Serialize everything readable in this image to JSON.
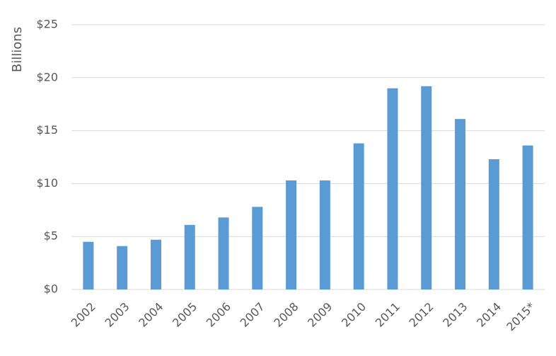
{
  "chart_data": {
    "type": "bar",
    "y_label": "Billions",
    "categories": [
      "2002",
      "2003",
      "2004",
      "2005",
      "2006",
      "2007",
      "2008",
      "2009",
      "2010",
      "2011",
      "2012",
      "2013",
      "2014",
      "2015*"
    ],
    "values": [
      4.5,
      4.1,
      4.7,
      6.1,
      6.8,
      7.8,
      10.3,
      10.3,
      13.8,
      19.0,
      19.2,
      16.1,
      12.3,
      13.6
    ],
    "color": "#5b9bd5",
    "ylim": [
      0,
      25
    ],
    "yticks": [
      {
        "value": 0,
        "label": "$0"
      },
      {
        "value": 5,
        "label": "$5"
      },
      {
        "value": 10,
        "label": "$10"
      },
      {
        "value": 15,
        "label": "$15"
      },
      {
        "value": 20,
        "label": "$20"
      },
      {
        "value": 25,
        "label": "$25"
      }
    ],
    "grid": true
  }
}
